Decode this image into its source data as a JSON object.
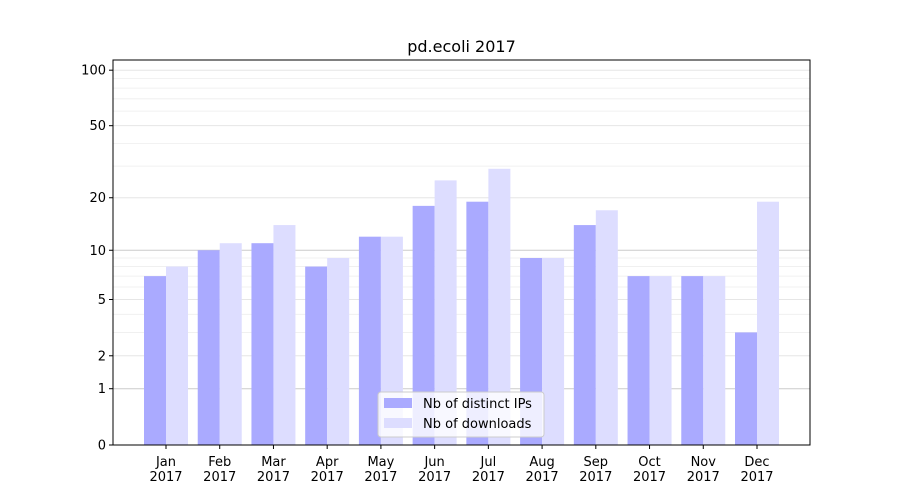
{
  "chart_data": {
    "type": "bar",
    "title": "pd.ecoli 2017",
    "xlabel": "",
    "ylabel": "",
    "yscale": "log1p",
    "ylim": [
      0,
      110
    ],
    "yticks": [
      0,
      1,
      2,
      5,
      10,
      20,
      50,
      100
    ],
    "categories": [
      "Jan\n2017",
      "Feb\n2017",
      "Mar\n2017",
      "Apr\n2017",
      "May\n2017",
      "Jun\n2017",
      "Jul\n2017",
      "Aug\n2017",
      "Sep\n2017",
      "Oct\n2017",
      "Nov\n2017",
      "Dec\n2017"
    ],
    "series": [
      {
        "name": "Nb of distinct IPs",
        "color": "#aaaaff",
        "values": [
          7,
          10,
          11,
          8,
          12,
          18,
          19,
          9,
          14,
          7,
          7,
          3
        ]
      },
      {
        "name": "Nb of downloads",
        "color": "#ddddff",
        "values": [
          8,
          11,
          14,
          9,
          12,
          25,
          29,
          9,
          17,
          7,
          7,
          19
        ]
      }
    ],
    "legend": "lower-center",
    "grid": true
  }
}
